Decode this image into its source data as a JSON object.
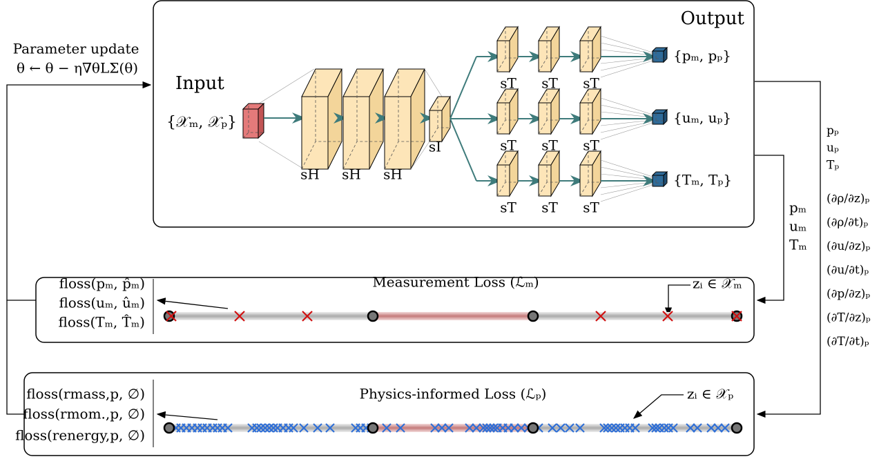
{
  "update": {
    "title": "Parameter update",
    "rule": "θ ← θ − η∇θLΣ(θ)"
  },
  "network": {
    "input": "Input",
    "input_set": "{𝒳ₘ, 𝒳ₚ}",
    "output": "Output",
    "hidden_labels": [
      "sH",
      "sH",
      "sH"
    ],
    "interface_label": "sI",
    "heads": [
      {
        "output": "{pₘ, pₚ}",
        "labels": [
          "sT",
          "sT",
          "sT"
        ]
      },
      {
        "output": "{uₘ, uₚ}",
        "labels": [
          "sT",
          "sT",
          "sT"
        ]
      },
      {
        "output": "{Tₘ, Tₚ}",
        "labels": [
          "sT",
          "sT",
          "sT"
        ]
      }
    ]
  },
  "physics_outputs": [
    "pₚ",
    "uₚ",
    "Tₚ",
    "(∂ρ/∂z)ₚ",
    "(∂ρ/∂t)ₚ",
    "(∂u/∂z)ₚ",
    "(∂u/∂t)ₚ",
    "(∂p/∂z)ₚ",
    "(∂T/∂z)ₚ",
    "(∂T/∂t)ₚ"
  ],
  "measurement_outputs": [
    "pₘ",
    "uₘ",
    "Tₘ"
  ],
  "measurement_loss": {
    "title": "Measurement Loss (ℒₘ)",
    "points": "zᵢ ∈ 𝒳ₘ",
    "terms": [
      "floss(pₘ, p̂ₘ)",
      "floss(uₘ, ûₘ)",
      "floss(Tₘ, T̂ₘ)"
    ]
  },
  "physics_loss": {
    "title": "Physics-informed Loss (ℒₚ)",
    "points": "zᵢ ∈ 𝒳ₚ",
    "terms": [
      "floss(rmass,p, ∅)",
      "floss(rmom.,p, ∅)",
      "floss(renergy,p, ∅)"
    ]
  }
}
